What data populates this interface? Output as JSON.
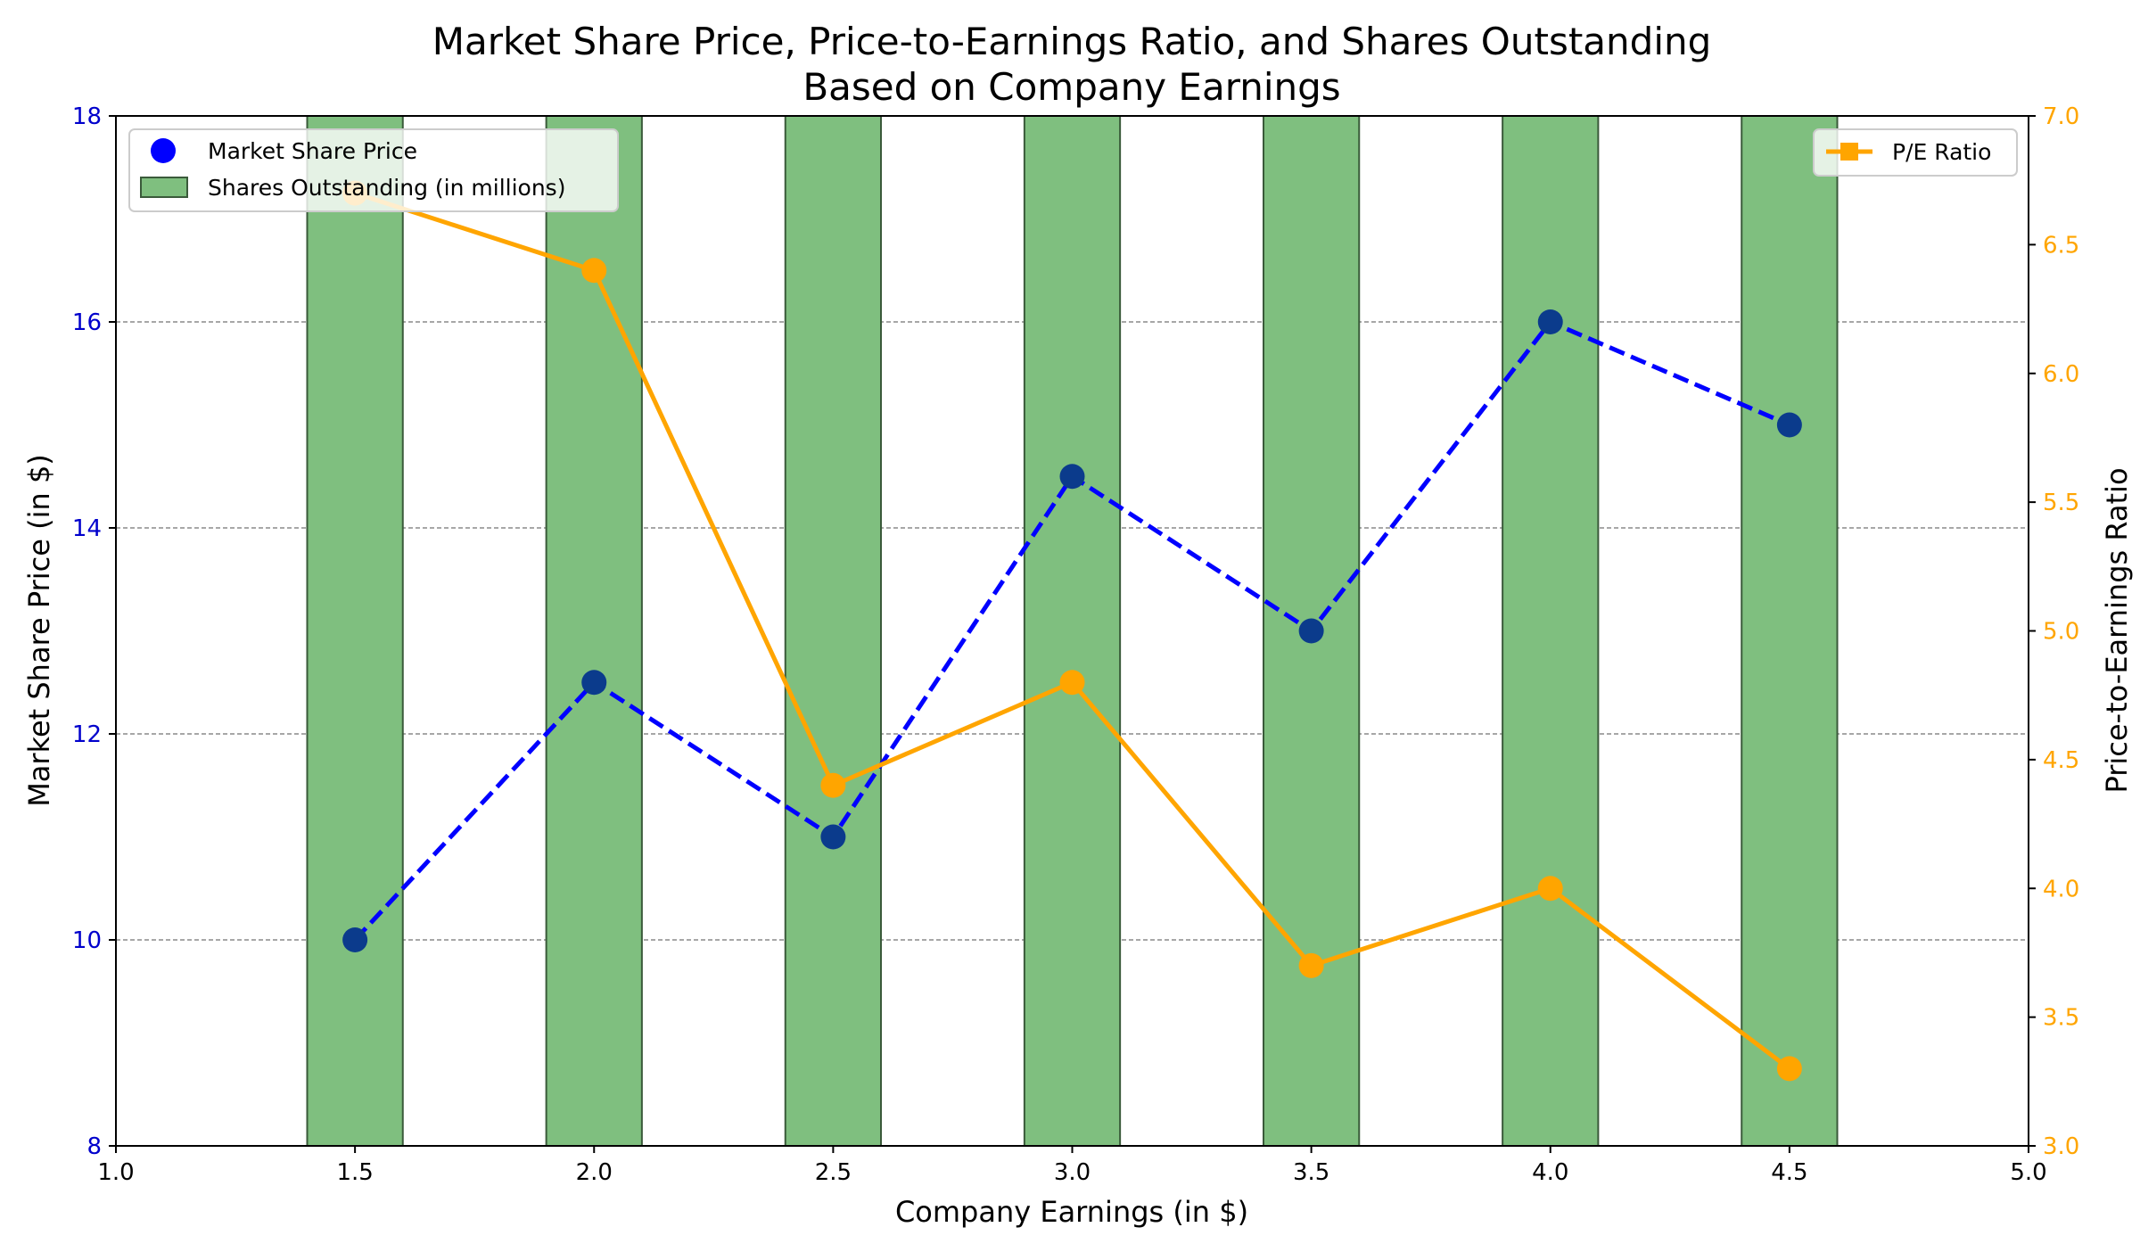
{
  "chart_data": {
    "type": "bar",
    "title_line1": "Market Share Price, Price-to-Earnings Ratio, and Shares Outstanding",
    "title_line2": "Based on Company Earnings",
    "xlabel": "Company Earnings (in $)",
    "ylabel_left": "Market Share Price (in $)",
    "ylabel_right": "Price-to-Earnings Ratio",
    "x": [
      1.5,
      2.0,
      2.5,
      3.0,
      3.5,
      4.0,
      4.5
    ],
    "xlim": [
      1.0,
      5.0
    ],
    "ylim_left": [
      8,
      18
    ],
    "ylim_right": [
      3.0,
      7.0
    ],
    "xticks": [
      "1.0",
      "1.5",
      "2.0",
      "2.5",
      "3.0",
      "3.5",
      "4.0",
      "4.5",
      "5.0"
    ],
    "yticks_left": [
      "8",
      "10",
      "12",
      "14",
      "16",
      "18"
    ],
    "yticks_right": [
      "3.0",
      "3.5",
      "4.0",
      "4.5",
      "5.0",
      "5.5",
      "6.0",
      "6.5",
      "7.0"
    ],
    "grid": true,
    "bar_width": 0.2,
    "series": [
      {
        "name": "Market Share Price",
        "kind": "scatter+dashed-line",
        "axis": "left",
        "color": "#0000ff",
        "marker_color": "#0b3b8c",
        "values": [
          10.0,
          12.5,
          11.0,
          14.5,
          13.0,
          16.0,
          15.0
        ]
      },
      {
        "name": "Shares Outstanding (in millions)",
        "kind": "bar",
        "axis": "left",
        "color": "#7fbf7f",
        "edge_color": "#3a5a3a",
        "values": [
          18,
          18,
          18,
          18,
          18,
          18,
          18
        ]
      },
      {
        "name": "P/E Ratio",
        "kind": "line",
        "axis": "right",
        "color": "#ffa500",
        "values": [
          6.7,
          6.4,
          4.4,
          4.8,
          3.7,
          4.0,
          3.3
        ]
      }
    ],
    "legend_left_placement": "top-left",
    "legend_right_placement": "top-right",
    "left_tick_color": "#0000cc",
    "right_tick_color": "#ffa500"
  }
}
